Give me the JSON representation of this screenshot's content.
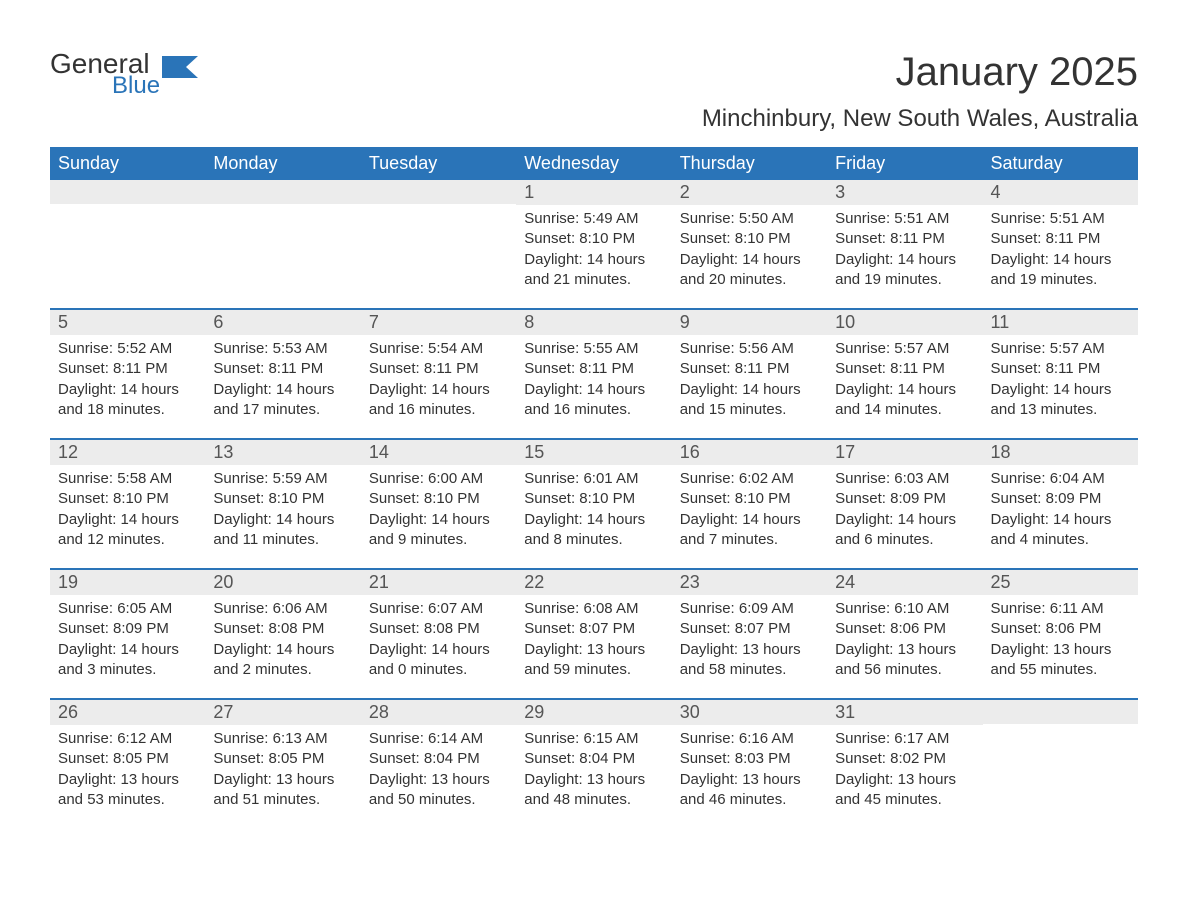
{
  "logo": {
    "text1": "General",
    "text2": "Blue",
    "flag_color": "#2a74b8"
  },
  "title": "January 2025",
  "location": "Minchinbury, New South Wales, Australia",
  "colors": {
    "header_bg": "#2a74b8",
    "header_text": "#ffffff",
    "daynum_bg": "#ececec",
    "text": "#333333",
    "week_border": "#2a74b8",
    "page_bg": "#ffffff"
  },
  "fonts": {
    "title_size_pt": 30,
    "location_size_pt": 18,
    "header_size_pt": 14,
    "daynum_size_pt": 14,
    "body_size_pt": 11
  },
  "day_headers": [
    "Sunday",
    "Monday",
    "Tuesday",
    "Wednesday",
    "Thursday",
    "Friday",
    "Saturday"
  ],
  "weeks": [
    [
      {
        "day": "",
        "sunrise": "",
        "sunset": "",
        "daylight1": "",
        "daylight2": ""
      },
      {
        "day": "",
        "sunrise": "",
        "sunset": "",
        "daylight1": "",
        "daylight2": ""
      },
      {
        "day": "",
        "sunrise": "",
        "sunset": "",
        "daylight1": "",
        "daylight2": ""
      },
      {
        "day": "1",
        "sunrise": "Sunrise: 5:49 AM",
        "sunset": "Sunset: 8:10 PM",
        "daylight1": "Daylight: 14 hours",
        "daylight2": "and 21 minutes."
      },
      {
        "day": "2",
        "sunrise": "Sunrise: 5:50 AM",
        "sunset": "Sunset: 8:10 PM",
        "daylight1": "Daylight: 14 hours",
        "daylight2": "and 20 minutes."
      },
      {
        "day": "3",
        "sunrise": "Sunrise: 5:51 AM",
        "sunset": "Sunset: 8:11 PM",
        "daylight1": "Daylight: 14 hours",
        "daylight2": "and 19 minutes."
      },
      {
        "day": "4",
        "sunrise": "Sunrise: 5:51 AM",
        "sunset": "Sunset: 8:11 PM",
        "daylight1": "Daylight: 14 hours",
        "daylight2": "and 19 minutes."
      }
    ],
    [
      {
        "day": "5",
        "sunrise": "Sunrise: 5:52 AM",
        "sunset": "Sunset: 8:11 PM",
        "daylight1": "Daylight: 14 hours",
        "daylight2": "and 18 minutes."
      },
      {
        "day": "6",
        "sunrise": "Sunrise: 5:53 AM",
        "sunset": "Sunset: 8:11 PM",
        "daylight1": "Daylight: 14 hours",
        "daylight2": "and 17 minutes."
      },
      {
        "day": "7",
        "sunrise": "Sunrise: 5:54 AM",
        "sunset": "Sunset: 8:11 PM",
        "daylight1": "Daylight: 14 hours",
        "daylight2": "and 16 minutes."
      },
      {
        "day": "8",
        "sunrise": "Sunrise: 5:55 AM",
        "sunset": "Sunset: 8:11 PM",
        "daylight1": "Daylight: 14 hours",
        "daylight2": "and 16 minutes."
      },
      {
        "day": "9",
        "sunrise": "Sunrise: 5:56 AM",
        "sunset": "Sunset: 8:11 PM",
        "daylight1": "Daylight: 14 hours",
        "daylight2": "and 15 minutes."
      },
      {
        "day": "10",
        "sunrise": "Sunrise: 5:57 AM",
        "sunset": "Sunset: 8:11 PM",
        "daylight1": "Daylight: 14 hours",
        "daylight2": "and 14 minutes."
      },
      {
        "day": "11",
        "sunrise": "Sunrise: 5:57 AM",
        "sunset": "Sunset: 8:11 PM",
        "daylight1": "Daylight: 14 hours",
        "daylight2": "and 13 minutes."
      }
    ],
    [
      {
        "day": "12",
        "sunrise": "Sunrise: 5:58 AM",
        "sunset": "Sunset: 8:10 PM",
        "daylight1": "Daylight: 14 hours",
        "daylight2": "and 12 minutes."
      },
      {
        "day": "13",
        "sunrise": "Sunrise: 5:59 AM",
        "sunset": "Sunset: 8:10 PM",
        "daylight1": "Daylight: 14 hours",
        "daylight2": "and 11 minutes."
      },
      {
        "day": "14",
        "sunrise": "Sunrise: 6:00 AM",
        "sunset": "Sunset: 8:10 PM",
        "daylight1": "Daylight: 14 hours",
        "daylight2": "and 9 minutes."
      },
      {
        "day": "15",
        "sunrise": "Sunrise: 6:01 AM",
        "sunset": "Sunset: 8:10 PM",
        "daylight1": "Daylight: 14 hours",
        "daylight2": "and 8 minutes."
      },
      {
        "day": "16",
        "sunrise": "Sunrise: 6:02 AM",
        "sunset": "Sunset: 8:10 PM",
        "daylight1": "Daylight: 14 hours",
        "daylight2": "and 7 minutes."
      },
      {
        "day": "17",
        "sunrise": "Sunrise: 6:03 AM",
        "sunset": "Sunset: 8:09 PM",
        "daylight1": "Daylight: 14 hours",
        "daylight2": "and 6 minutes."
      },
      {
        "day": "18",
        "sunrise": "Sunrise: 6:04 AM",
        "sunset": "Sunset: 8:09 PM",
        "daylight1": "Daylight: 14 hours",
        "daylight2": "and 4 minutes."
      }
    ],
    [
      {
        "day": "19",
        "sunrise": "Sunrise: 6:05 AM",
        "sunset": "Sunset: 8:09 PM",
        "daylight1": "Daylight: 14 hours",
        "daylight2": "and 3 minutes."
      },
      {
        "day": "20",
        "sunrise": "Sunrise: 6:06 AM",
        "sunset": "Sunset: 8:08 PM",
        "daylight1": "Daylight: 14 hours",
        "daylight2": "and 2 minutes."
      },
      {
        "day": "21",
        "sunrise": "Sunrise: 6:07 AM",
        "sunset": "Sunset: 8:08 PM",
        "daylight1": "Daylight: 14 hours",
        "daylight2": "and 0 minutes."
      },
      {
        "day": "22",
        "sunrise": "Sunrise: 6:08 AM",
        "sunset": "Sunset: 8:07 PM",
        "daylight1": "Daylight: 13 hours",
        "daylight2": "and 59 minutes."
      },
      {
        "day": "23",
        "sunrise": "Sunrise: 6:09 AM",
        "sunset": "Sunset: 8:07 PM",
        "daylight1": "Daylight: 13 hours",
        "daylight2": "and 58 minutes."
      },
      {
        "day": "24",
        "sunrise": "Sunrise: 6:10 AM",
        "sunset": "Sunset: 8:06 PM",
        "daylight1": "Daylight: 13 hours",
        "daylight2": "and 56 minutes."
      },
      {
        "day": "25",
        "sunrise": "Sunrise: 6:11 AM",
        "sunset": "Sunset: 8:06 PM",
        "daylight1": "Daylight: 13 hours",
        "daylight2": "and 55 minutes."
      }
    ],
    [
      {
        "day": "26",
        "sunrise": "Sunrise: 6:12 AM",
        "sunset": "Sunset: 8:05 PM",
        "daylight1": "Daylight: 13 hours",
        "daylight2": "and 53 minutes."
      },
      {
        "day": "27",
        "sunrise": "Sunrise: 6:13 AM",
        "sunset": "Sunset: 8:05 PM",
        "daylight1": "Daylight: 13 hours",
        "daylight2": "and 51 minutes."
      },
      {
        "day": "28",
        "sunrise": "Sunrise: 6:14 AM",
        "sunset": "Sunset: 8:04 PM",
        "daylight1": "Daylight: 13 hours",
        "daylight2": "and 50 minutes."
      },
      {
        "day": "29",
        "sunrise": "Sunrise: 6:15 AM",
        "sunset": "Sunset: 8:04 PM",
        "daylight1": "Daylight: 13 hours",
        "daylight2": "and 48 minutes."
      },
      {
        "day": "30",
        "sunrise": "Sunrise: 6:16 AM",
        "sunset": "Sunset: 8:03 PM",
        "daylight1": "Daylight: 13 hours",
        "daylight2": "and 46 minutes."
      },
      {
        "day": "31",
        "sunrise": "Sunrise: 6:17 AM",
        "sunset": "Sunset: 8:02 PM",
        "daylight1": "Daylight: 13 hours",
        "daylight2": "and 45 minutes."
      },
      {
        "day": "",
        "sunrise": "",
        "sunset": "",
        "daylight1": "",
        "daylight2": ""
      }
    ]
  ]
}
